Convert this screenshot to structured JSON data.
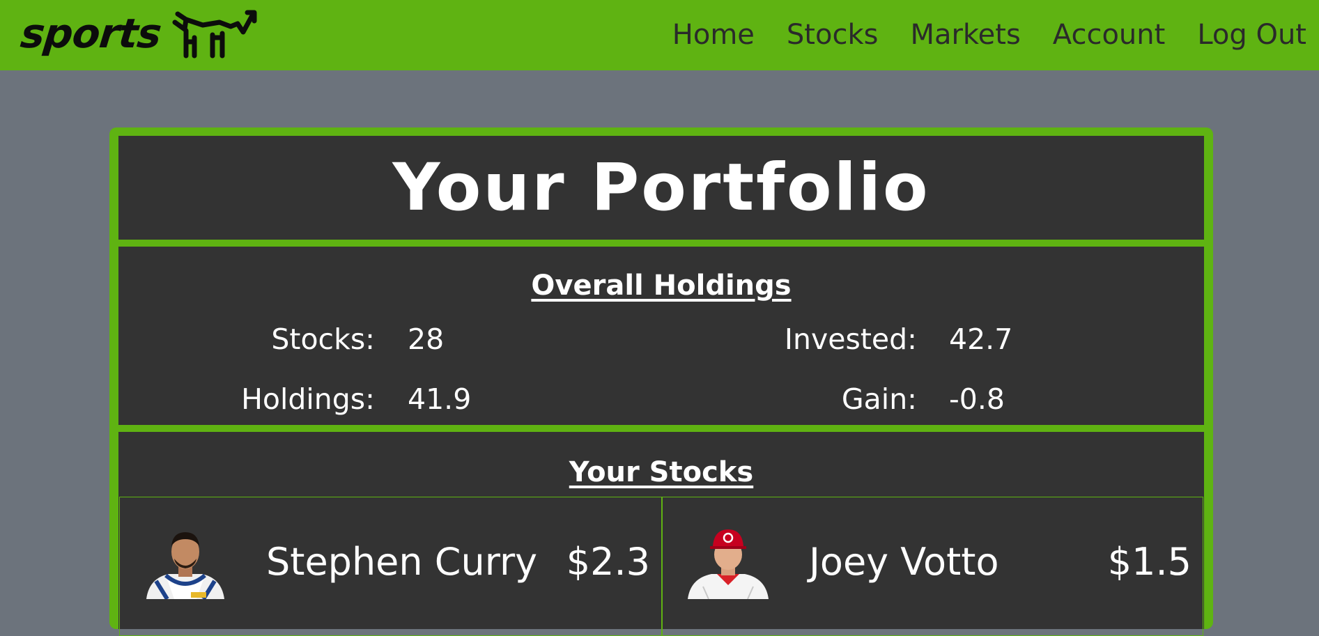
{
  "brand": {
    "name": "sports",
    "icon": "bull-icon"
  },
  "nav": {
    "items": [
      {
        "label": "Home"
      },
      {
        "label": "Stocks"
      },
      {
        "label": "Markets"
      },
      {
        "label": "Account"
      },
      {
        "label": "Log Out"
      }
    ]
  },
  "colors": {
    "accent": "#5fb312",
    "page_bg": "#6c737c",
    "panel_bg": "#333333",
    "text": "#ffffff"
  },
  "portfolio": {
    "title": "Your Portfolio",
    "overall": {
      "heading": "Overall Holdings",
      "stats": [
        {
          "label": "Stocks:",
          "value": "28"
        },
        {
          "label": "Holdings:",
          "value": "41.9"
        },
        {
          "label": "Invested:",
          "value": "42.7"
        },
        {
          "label": "Gain:",
          "value": "-0.8"
        }
      ]
    },
    "stocks": {
      "heading": "Your Stocks",
      "items": [
        {
          "name": "Stephen Curry",
          "price": "$2.3",
          "photo": "basketball-player-photo"
        },
        {
          "name": "Joey Votto",
          "price": "$1.5",
          "photo": "baseball-player-photo"
        }
      ]
    }
  }
}
